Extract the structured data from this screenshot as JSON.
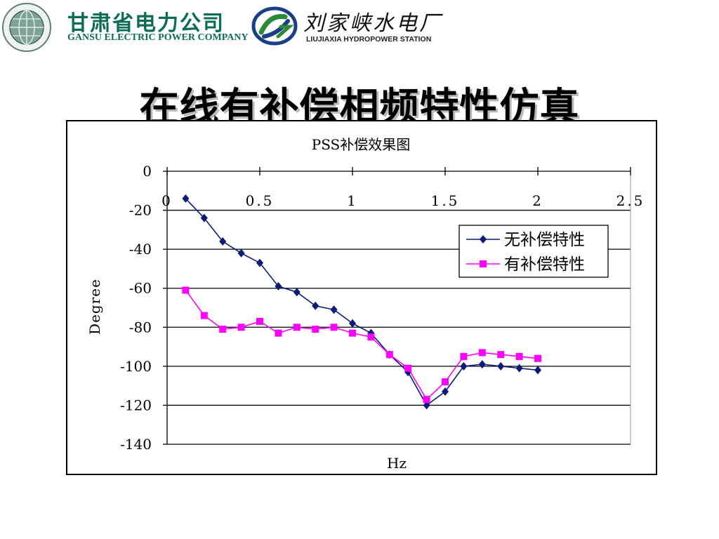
{
  "header": {
    "company_cn": "甘肃省电力公司",
    "company_en": "GANSU ELECTRIC POWER COMPANY",
    "station_cn": "刘家峡水电厂",
    "station_en": "LIUJIAXIA HYDROPOWER STATION",
    "logo1_icon": "state-grid-globe-icon",
    "logo2_icon": "liujiaxia-swirl-icon"
  },
  "slide": {
    "title": "在线有补偿相频特性仿真"
  },
  "colors": {
    "series1": "#0a1a7a",
    "series2": "#ff00ff",
    "brand": "#0c6d57"
  },
  "chart_data": {
    "type": "line",
    "title": "PSS补偿效果图",
    "xlabel": "Hz",
    "ylabel": "Degree",
    "xlim": [
      0,
      2.5
    ],
    "ylim": [
      -140,
      0
    ],
    "xticks": [
      0,
      0.5,
      1,
      1.5,
      2,
      2.5
    ],
    "xtick_labels": [
      "0",
      "0.5",
      "1",
      "1.5",
      "2",
      "2.5"
    ],
    "yticks": [
      0,
      -20,
      -40,
      -60,
      -80,
      -100,
      -120,
      -140
    ],
    "ytick_labels": [
      "0",
      "-20",
      "-40",
      "-60",
      "-80",
      "-100",
      "-120",
      "-140"
    ],
    "grid": "horizontal",
    "legend": "right",
    "x": [
      0.1,
      0.2,
      0.3,
      0.4,
      0.5,
      0.6,
      0.7,
      0.8,
      0.9,
      1.0,
      1.1,
      1.2,
      1.3,
      1.4,
      1.5,
      1.6,
      1.7,
      1.8,
      1.9,
      2.0
    ],
    "series": [
      {
        "name": "无补偿特性",
        "marker": "diamond",
        "values": [
          -14,
          -24,
          -36,
          -42,
          -47,
          -59,
          -62,
          -69,
          -71,
          -78,
          -83,
          -94,
          -103,
          -120,
          -113,
          -100,
          -99,
          -100,
          -101,
          -102
        ]
      },
      {
        "name": "有补偿特性",
        "marker": "square",
        "values": [
          -61,
          -74,
          -81,
          -80,
          -77,
          -83,
          -80,
          -81,
          -80,
          -83,
          -85,
          -94,
          -101,
          -117,
          -108,
          -95,
          -93,
          -94,
          -95,
          -96
        ]
      }
    ]
  }
}
